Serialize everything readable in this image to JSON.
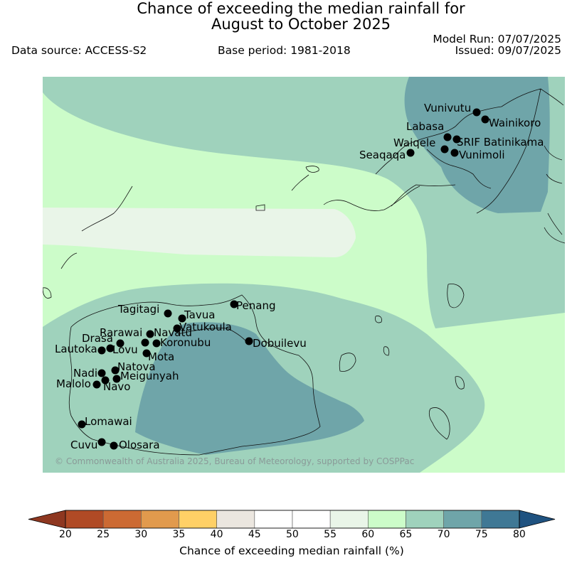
{
  "header": {
    "title_line1": "Chance of exceeding the median rainfall for",
    "title_line2": "August to October 2025",
    "data_source": "Data source: ACCESS-S2",
    "base_period": "Base period: 1981-2018",
    "model_run": "Model Run: 07/07/2025",
    "issued": "Issued: 09/07/2025"
  },
  "map": {
    "copyright": "© Commonwealth of Australia 2025, Bureau of Meteorology, supported by COSPPac",
    "locations": [
      {
        "name": "Vunivutu"
      },
      {
        "name": "Wainikoro"
      },
      {
        "name": "Labasa"
      },
      {
        "name": "SRIF Batinikama"
      },
      {
        "name": "Waiqele"
      },
      {
        "name": "Seaqaqa"
      },
      {
        "name": "Vunimoli"
      },
      {
        "name": "Penang"
      },
      {
        "name": "Tagitagi"
      },
      {
        "name": "Tavua"
      },
      {
        "name": "Vatukoula"
      },
      {
        "name": "Rarawai"
      },
      {
        "name": "Navatu"
      },
      {
        "name": "Drasa"
      },
      {
        "name": "Koronubu"
      },
      {
        "name": "Dobuilevu"
      },
      {
        "name": "Lautoka"
      },
      {
        "name": "Lovu"
      },
      {
        "name": "Mota"
      },
      {
        "name": "Natova"
      },
      {
        "name": "Nadi"
      },
      {
        "name": "Meigunyah"
      },
      {
        "name": "Malolo"
      },
      {
        "name": "Navo"
      },
      {
        "name": "Lomawai"
      },
      {
        "name": "Cuvu"
      },
      {
        "name": "Olosara"
      }
    ]
  },
  "colorbar": {
    "title": "Chance of exceeding median rainfall (%)",
    "ticks": [
      "20",
      "25",
      "30",
      "35",
      "40",
      "45",
      "50",
      "55",
      "60",
      "65",
      "70",
      "75",
      "80"
    ],
    "colors": [
      "#b04a25",
      "#cc6a33",
      "#e19a4d",
      "#ffd066",
      "#ebe6df",
      "#ffffff",
      "#ffffff",
      "#e9f5e8",
      "#ccfcc9",
      "#9fd2bc",
      "#6fa5a9",
      "#3f7895"
    ],
    "under_color": "#8e3720",
    "over_color": "#1f5280"
  }
}
